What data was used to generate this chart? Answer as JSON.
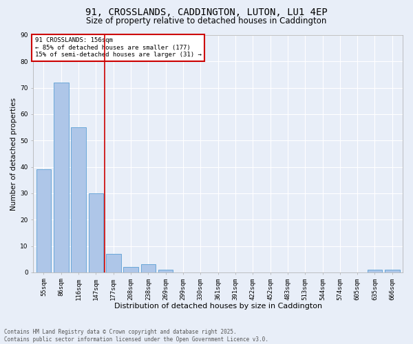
{
  "title_line1": "91, CROSSLANDS, CADDINGTON, LUTON, LU1 4EP",
  "title_line2": "Size of property relative to detached houses in Caddington",
  "xlabel": "Distribution of detached houses by size in Caddington",
  "ylabel": "Number of detached properties",
  "bar_labels": [
    "55sqm",
    "86sqm",
    "116sqm",
    "147sqm",
    "177sqm",
    "208sqm",
    "238sqm",
    "269sqm",
    "299sqm",
    "330sqm",
    "361sqm",
    "391sqm",
    "422sqm",
    "452sqm",
    "483sqm",
    "513sqm",
    "544sqm",
    "574sqm",
    "605sqm",
    "635sqm",
    "666sqm"
  ],
  "bar_values": [
    39,
    72,
    55,
    30,
    7,
    2,
    3,
    1,
    0,
    0,
    0,
    0,
    0,
    0,
    0,
    0,
    0,
    0,
    0,
    1,
    1
  ],
  "bar_color": "#aec6e8",
  "bar_edge_color": "#5a9fd4",
  "vline_x": 3.5,
  "vline_color": "#cc0000",
  "annotation_text": "91 CROSSLANDS: 156sqm\n← 85% of detached houses are smaller (177)\n15% of semi-detached houses are larger (31) →",
  "annotation_box_color": "#ffffff",
  "annotation_box_edge_color": "#cc0000",
  "footnote": "Contains HM Land Registry data © Crown copyright and database right 2025.\nContains public sector information licensed under the Open Government Licence v3.0.",
  "ylim": [
    0,
    90
  ],
  "yticks": [
    0,
    10,
    20,
    30,
    40,
    50,
    60,
    70,
    80,
    90
  ],
  "background_color": "#e8eef8",
  "plot_background_color": "#e8eef8",
  "grid_color": "#ffffff",
  "title_fontsize": 10,
  "subtitle_fontsize": 8.5,
  "ylabel_fontsize": 7.5,
  "xlabel_fontsize": 8,
  "tick_fontsize": 6.5,
  "annotation_fontsize": 6.5,
  "footnote_fontsize": 5.5
}
